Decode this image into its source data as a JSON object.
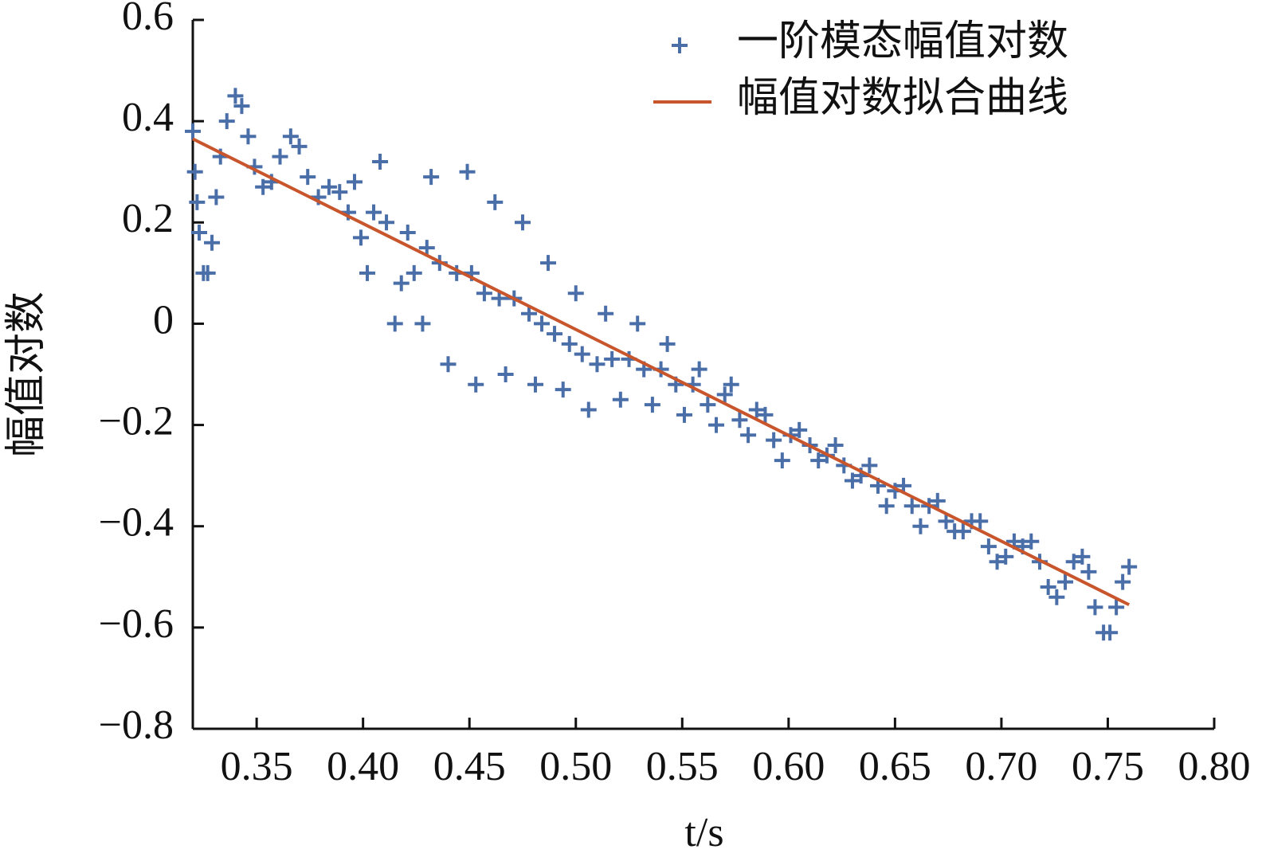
{
  "chart_data": {
    "type": "scatter",
    "xlabel": "t/s",
    "ylabel": "幅值对数",
    "xlim": [
      0.32,
      0.8
    ],
    "xticks": [
      0.35,
      {
        "value": 0.4,
        "label": "0.40"
      },
      0.45,
      {
        "value": 0.5,
        "label": "0.50"
      },
      0.55,
      {
        "value": 0.6,
        "label": "0.60"
      },
      0.65,
      {
        "value": 0.7,
        "label": "0.70"
      },
      0.75,
      {
        "value": 0.8,
        "label": "0.80"
      }
    ],
    "ylim": [
      -0.8,
      0.6
    ],
    "yticks": [
      {
        "value": -0.8,
        "label": "−0.8"
      },
      {
        "value": -0.6,
        "label": "−0.6"
      },
      {
        "value": -0.4,
        "label": "−0.4"
      },
      {
        "value": -0.2,
        "label": "−0.2"
      },
      0,
      0.2,
      0.4,
      0.6
    ],
    "legend": "upper right",
    "series": [
      {
        "name": "一阶模态幅值对数",
        "color": "#4a6ea8",
        "marker": "+",
        "x": [
          0.32,
          0.321,
          0.322,
          0.323,
          0.325,
          0.327,
          0.329,
          0.331,
          0.333,
          0.336,
          0.34,
          0.343,
          0.346,
          0.349,
          0.353,
          0.357,
          0.361,
          0.366,
          0.37,
          0.374,
          0.379,
          0.384,
          0.389,
          0.393,
          0.396,
          0.399,
          0.402,
          0.405,
          0.408,
          0.411,
          0.415,
          0.418,
          0.421,
          0.424,
          0.428,
          0.43,
          0.432,
          0.436,
          0.44,
          0.444,
          0.449,
          0.451,
          0.453,
          0.457,
          0.462,
          0.464,
          0.467,
          0.471,
          0.475,
          0.478,
          0.481,
          0.484,
          0.487,
          0.49,
          0.494,
          0.497,
          0.5,
          0.503,
          0.506,
          0.51,
          0.514,
          0.517,
          0.521,
          0.525,
          0.529,
          0.532,
          0.536,
          0.54,
          0.543,
          0.547,
          0.551,
          0.555,
          0.558,
          0.562,
          0.566,
          0.57,
          0.573,
          0.577,
          0.581,
          0.585,
          0.589,
          0.593,
          0.597,
          0.601,
          0.605,
          0.61,
          0.614,
          0.618,
          0.622,
          0.626,
          0.63,
          0.634,
          0.638,
          0.642,
          0.646,
          0.65,
          0.654,
          0.658,
          0.662,
          0.666,
          0.67,
          0.674,
          0.678,
          0.682,
          0.686,
          0.69,
          0.694,
          0.698,
          0.702,
          0.706,
          0.71,
          0.714,
          0.718,
          0.722,
          0.726,
          0.73,
          0.734,
          0.738,
          0.741,
          0.744,
          0.748,
          0.751,
          0.754,
          0.757,
          0.76
        ],
        "values": [
          0.38,
          0.3,
          0.24,
          0.18,
          0.1,
          0.1,
          0.16,
          0.25,
          0.33,
          0.4,
          0.45,
          0.43,
          0.37,
          0.31,
          0.27,
          0.28,
          0.33,
          0.37,
          0.35,
          0.29,
          0.25,
          0.27,
          0.26,
          0.22,
          0.28,
          0.17,
          0.1,
          0.22,
          0.32,
          0.2,
          0.0,
          0.08,
          0.18,
          0.1,
          0.0,
          0.15,
          0.29,
          0.12,
          -0.08,
          0.1,
          0.3,
          0.1,
          -0.12,
          0.06,
          0.24,
          0.05,
          -0.1,
          0.05,
          0.2,
          0.02,
          -0.12,
          0.0,
          0.12,
          -0.02,
          -0.13,
          -0.04,
          0.06,
          -0.06,
          -0.17,
          -0.08,
          0.02,
          -0.07,
          -0.15,
          -0.07,
          0.0,
          -0.09,
          -0.16,
          -0.09,
          -0.04,
          -0.12,
          -0.18,
          -0.12,
          -0.09,
          -0.16,
          -0.2,
          -0.14,
          -0.12,
          -0.19,
          -0.22,
          -0.17,
          -0.18,
          -0.23,
          -0.27,
          -0.22,
          -0.21,
          -0.24,
          -0.27,
          -0.26,
          -0.24,
          -0.28,
          -0.31,
          -0.3,
          -0.28,
          -0.32,
          -0.36,
          -0.33,
          -0.32,
          -0.36,
          -0.4,
          -0.36,
          -0.35,
          -0.39,
          -0.41,
          -0.41,
          -0.39,
          -0.39,
          -0.44,
          -0.47,
          -0.46,
          -0.43,
          -0.44,
          -0.43,
          -0.47,
          -0.52,
          -0.54,
          -0.51,
          -0.47,
          -0.46,
          -0.49,
          -0.56,
          -0.61,
          -0.61,
          -0.56,
          -0.51,
          -0.48
        ]
      },
      {
        "name": "幅值对数拟合曲线",
        "color": "#c8552b",
        "type": "line",
        "x": [
          0.32,
          0.76
        ],
        "values": [
          0.365,
          -0.555
        ]
      }
    ]
  }
}
